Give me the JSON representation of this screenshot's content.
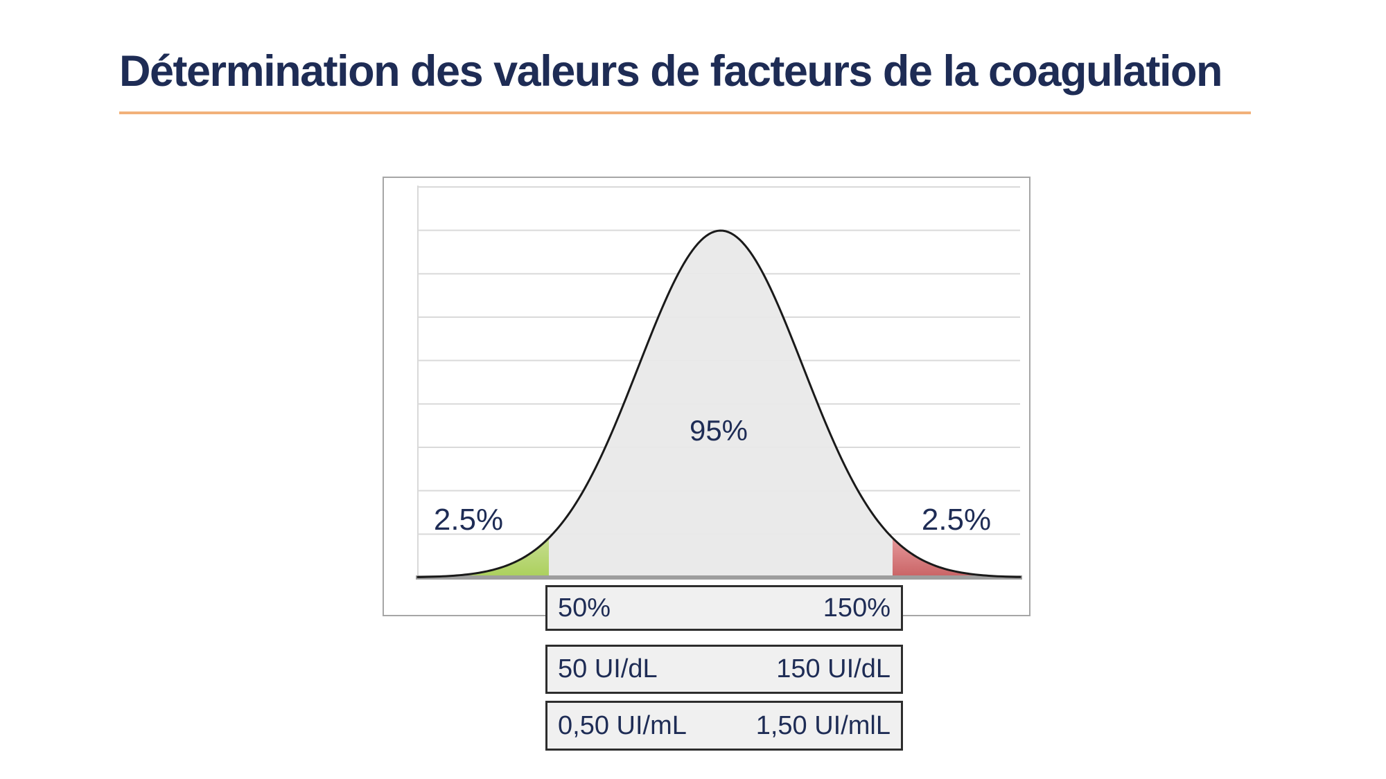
{
  "slide": {
    "title": "Détermination des valeurs de facteurs de la coagulation"
  },
  "colors": {
    "slide_bg": "#ffffff",
    "navy": "#1e2c55",
    "accent_rule": "#f2b17a",
    "chart_frame": "#a6a6a6",
    "gridline": "#d9d9d9",
    "axis_line": "#9e9e9e",
    "curve_stroke": "#1a1a1a",
    "fill_central": "#e9e9e9",
    "fill_left_tail": "#abd05c",
    "fill_left_tail_light": "#c6dd90",
    "fill_right_tail": "#c96365",
    "fill_right_tail_light": "#e5989a",
    "box_fill": "#f0f0f0",
    "box_border": "#2d2d2d"
  },
  "chart_data": {
    "type": "area",
    "distribution": "normal",
    "title": "Détermination des valeurs de facteurs de la coagulation",
    "mean_percent": 100,
    "central_coverage_percent": 95,
    "tail_coverage_percent": 2.5,
    "cutoffs_percent": [
      50,
      150
    ],
    "central_area_label": "95%",
    "tail_labels": {
      "left": "2.5%",
      "right": "2.5%"
    },
    "cutoff_rows": [
      {
        "unit": "percent",
        "lower": "50%",
        "upper": "150%"
      },
      {
        "unit": "UI/dL",
        "lower": "50 UI/dL",
        "upper": "150 UI/dL"
      },
      {
        "unit": "UI/mL",
        "lower": "0,50 UI/mL",
        "upper": "1,50 UI/mlL"
      }
    ],
    "grid": "horizontal",
    "legend": "none",
    "x_axis": {
      "tick_labels_visible": false
    },
    "y_axis": {
      "tick_labels_visible": false
    }
  }
}
